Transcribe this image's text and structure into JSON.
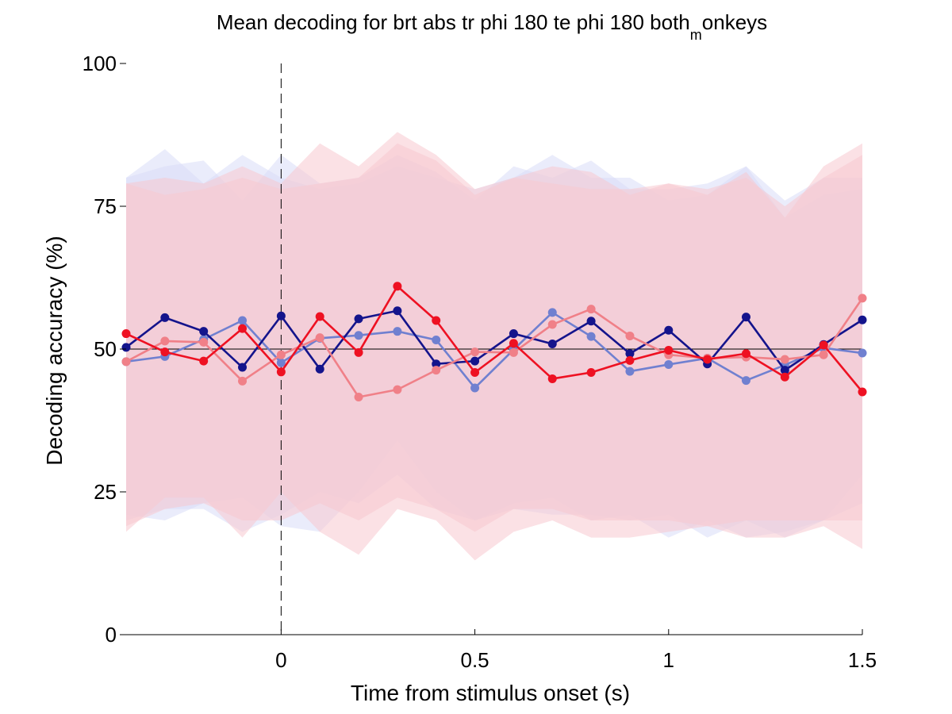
{
  "chart_data": {
    "type": "line",
    "title": "Mean decoding for brt abs tr phi 180 te phi 180  both",
    "title_subscript": "m",
    "title_suffix": "onkeys",
    "xlabel": "Time from stimulus onset (s)",
    "ylabel": "Decoding accuracy (%)",
    "xlim": [
      -0.4,
      1.5
    ],
    "ylim": [
      0,
      100
    ],
    "xticks": [
      0,
      0.5,
      1,
      1.5
    ],
    "xtick_labels": [
      "0",
      "0.5",
      "1",
      "1.5"
    ],
    "yticks": [
      0,
      25,
      50,
      75,
      100
    ],
    "ytick_labels": [
      "0",
      "25",
      "50",
      "75",
      "100"
    ],
    "chance_level": 50,
    "onset_marker": 0,
    "grid": false,
    "legend": "none",
    "x": [
      -0.4,
      -0.3,
      -0.2,
      -0.1,
      0,
      0.1,
      0.2,
      0.3,
      0.4,
      0.5,
      0.6,
      0.7,
      0.8,
      0.9,
      1.0,
      1.1,
      1.2,
      1.3,
      1.4,
      1.5
    ],
    "series": [
      {
        "color": "#7080d0",
        "values": [
          47.8,
          48.7,
          51.7,
          55.0,
          47.6,
          51.9,
          52.4,
          53.1,
          51.6,
          43.2,
          49.9,
          56.4,
          52.2,
          46.1,
          47.3,
          48.4,
          44.5,
          47.2,
          50.2,
          49.3
        ],
        "band_color": "#d8dcf8",
        "band_upper": [
          80,
          85,
          79,
          84,
          80,
          78,
          79,
          82,
          80,
          78,
          80,
          84,
          80,
          80,
          76,
          77,
          82,
          73,
          77,
          78
        ],
        "band_lower": [
          21,
          20,
          23,
          24,
          19,
          18,
          25,
          34,
          25,
          20,
          23,
          24,
          20,
          21,
          17,
          20,
          17,
          18,
          20,
          28
        ]
      },
      {
        "color": "#14148c",
        "values": [
          50.3,
          55.5,
          53.1,
          46.8,
          55.8,
          46.5,
          55.3,
          56.7,
          47.4,
          47.9,
          52.7,
          50.9,
          54.9,
          49.2,
          53.3,
          47.4,
          55.6,
          46.3,
          50.8,
          55.1
        ],
        "band_color": "#d8dcf8",
        "band_upper": [
          80,
          82,
          83,
          76,
          84,
          79,
          80,
          84,
          81,
          76,
          82,
          80,
          83,
          78,
          78,
          79,
          82,
          76,
          80,
          80
        ],
        "band_lower": [
          20,
          22,
          22,
          18,
          21,
          25,
          23,
          28,
          22,
          20,
          22,
          21,
          21,
          20,
          21,
          17,
          20,
          17,
          20,
          23
        ]
      },
      {
        "color": "#f08088",
        "values": [
          47.8,
          51.4,
          51.2,
          44.4,
          49.0,
          52.0,
          41.6,
          42.9,
          46.3,
          49.5,
          49.4,
          54.3,
          57.0,
          52.3,
          49.0,
          48.4,
          48.6,
          48.2,
          49.0,
          58.9
        ],
        "band_color": "#f8c8d0",
        "band_upper": [
          79,
          80,
          79,
          82,
          79,
          86,
          82,
          88,
          84,
          78,
          80,
          82,
          81,
          77,
          79,
          77,
          81,
          73,
          82,
          86
        ],
        "band_lower": [
          18,
          24,
          24,
          17,
          25,
          18,
          14,
          22,
          20,
          13,
          18,
          20,
          17,
          17,
          18,
          19,
          17,
          17,
          19,
          15
        ]
      },
      {
        "color": "#ee1122",
        "values": [
          52.7,
          49.5,
          47.9,
          53.6,
          46.0,
          55.7,
          49.4,
          61.0,
          55.0,
          45.9,
          51.0,
          44.8,
          45.9,
          48.0,
          49.8,
          48.2,
          49.2,
          45.1,
          50.7,
          42.5
        ],
        "band_color": "#f8c8d0",
        "band_upper": [
          79,
          77,
          78,
          80,
          78,
          79,
          80,
          86,
          83,
          77,
          80,
          79,
          78,
          78,
          79,
          78,
          80,
          75,
          80,
          84
        ],
        "band_lower": [
          19,
          22,
          23,
          20,
          20,
          23,
          20,
          24,
          22,
          18,
          22,
          22,
          20,
          20,
          20,
          19,
          20,
          20,
          20,
          20
        ]
      }
    ]
  }
}
